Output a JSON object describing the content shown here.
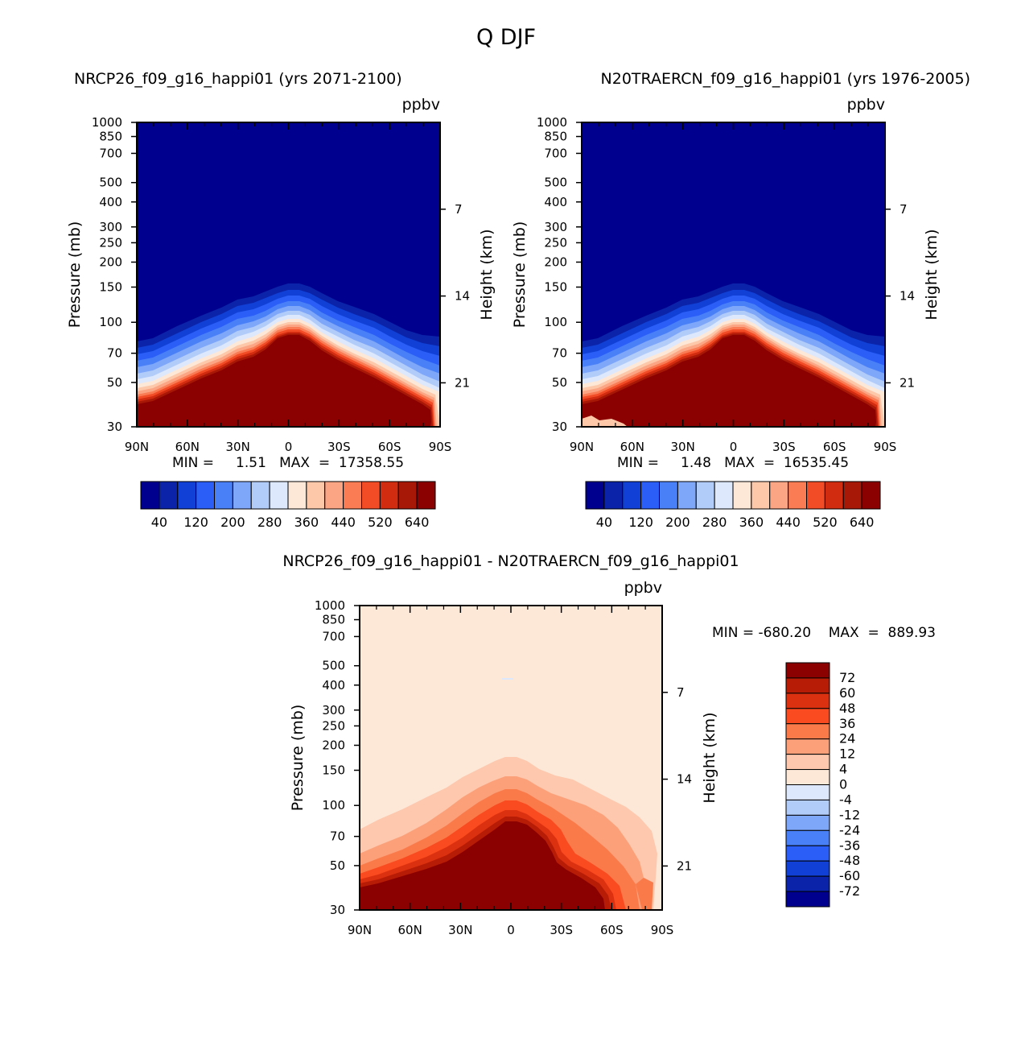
{
  "title": "Q DJF",
  "unit": "ppbv",
  "x_ticks": [
    "90N",
    "60N",
    "30N",
    "0",
    "30S",
    "60S",
    "90S"
  ],
  "pressure_ticks": [
    30,
    50,
    70,
    100,
    150,
    200,
    250,
    300,
    400,
    500,
    700,
    850,
    1000
  ],
  "height_ticks": [
    21,
    14,
    7
  ],
  "ylabel_left": "Pressure (mb)",
  "ylabel_right": "Height (km)",
  "panel1": {
    "title": "NRCP26_f09_g16_happi01 (yrs 2071-2100)",
    "minmax": "MIN =     1.51   MAX  =  17358.55"
  },
  "panel2": {
    "title": "N20TRAERCN_f09_g16_happi01 (yrs 1976-2005)",
    "minmax": "MIN =     1.48   MAX  =  16535.45"
  },
  "panel3": {
    "title": "NRCP26_f09_g16_happi01 - N20TRAERCN_f09_g16_happi01",
    "minmax": "MIN = -680.20    MAX  =  889.93"
  },
  "colorbar_abs": {
    "colors": [
      "#00008f",
      "#0a23a8",
      "#1040d6",
      "#2a5ef7",
      "#4a80f7",
      "#7ea6f9",
      "#b2ccfa",
      "#dde8fc",
      "#fde8d8",
      "#fdc8aa",
      "#fca584",
      "#fa7c55",
      "#f24c27",
      "#d12b10",
      "#a81807",
      "#8b0000"
    ],
    "labels": [
      "40",
      "120",
      "200",
      "280",
      "360",
      "440",
      "520",
      "640"
    ]
  },
  "colorbar_diff": {
    "colors": [
      "#8b0000",
      "#b71c06",
      "#dc3110",
      "#fa4a1f",
      "#fa7a4a",
      "#fca07a",
      "#fdc8ad",
      "#fde8d8",
      "#dde8fc",
      "#b2ccfa",
      "#7ea6f9",
      "#4a80f7",
      "#2a5ef7",
      "#1040d6",
      "#0a23a8",
      "#00008f"
    ],
    "labels": [
      "72",
      "60",
      "48",
      "36",
      "24",
      "12",
      "4",
      "0",
      "-4",
      "-12",
      "-24",
      "-36",
      "-48",
      "-60",
      "-72"
    ]
  },
  "chart_data": [
    {
      "type": "heatmap",
      "title": "NRCP26_f09_g16_happi01 (yrs 2071-2100)",
      "xlabel": "",
      "ylabel": "Pressure (mb)",
      "ylabel_right": "Height (km)",
      "units": "ppbv",
      "x_range": [
        "90N",
        "90S"
      ],
      "y_range_mb": [
        1000,
        30
      ],
      "y_scale": "log",
      "min": 1.51,
      "max": 17358.55,
      "contour_levels": [
        40,
        80,
        120,
        160,
        200,
        240,
        280,
        320,
        360,
        400,
        440,
        480,
        520,
        560,
        640
      ]
    },
    {
      "type": "heatmap",
      "title": "N20TRAERCN_f09_g16_happi01 (yrs 1976-2005)",
      "xlabel": "",
      "ylabel": "Pressure (mb)",
      "ylabel_right": "Height (km)",
      "units": "ppbv",
      "x_range": [
        "90N",
        "90S"
      ],
      "y_range_mb": [
        1000,
        30
      ],
      "y_scale": "log",
      "min": 1.48,
      "max": 16535.45,
      "contour_levels": [
        40,
        80,
        120,
        160,
        200,
        240,
        280,
        320,
        360,
        400,
        440,
        480,
        520,
        560,
        640
      ]
    },
    {
      "type": "heatmap",
      "title": "NRCP26_f09_g16_happi01 - N20TRAERCN_f09_g16_happi01",
      "xlabel": "",
      "ylabel": "Pressure (mb)",
      "ylabel_right": "Height (km)",
      "units": "ppbv",
      "x_range": [
        "90N",
        "90S"
      ],
      "y_range_mb": [
        1000,
        30
      ],
      "y_scale": "log",
      "min": -680.2,
      "max": 889.93,
      "contour_levels": [
        -72,
        -60,
        -48,
        -36,
        -24,
        -12,
        -4,
        0,
        4,
        12,
        24,
        36,
        48,
        60,
        72
      ]
    }
  ]
}
